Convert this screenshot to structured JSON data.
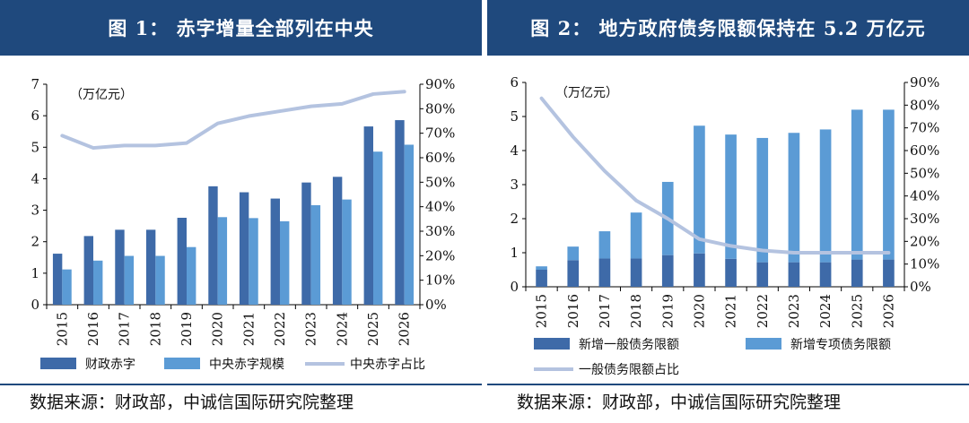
{
  "panels": {
    "left": {
      "title": "图 1： 赤字增量全部列在中央",
      "source": "数据来源：财政部，中诚信国际研究院整理"
    },
    "right": {
      "title": "图 2： 地方政府债务限额保持在 5.2 万亿元",
      "source": "数据来源：财政部，中诚信国际研究院整理"
    }
  },
  "colors": {
    "title_bg": "#1f497d",
    "bar_dark": "#3e6aa8",
    "bar_light": "#5b9bd5",
    "line": "#b4c3e0"
  },
  "chart_data": [
    {
      "id": "left",
      "type": "bar",
      "title": "图 1： 赤字增量全部列在中央",
      "unit_label": "（万亿元）",
      "categories": [
        "2015",
        "2016",
        "2017",
        "2018",
        "2019",
        "2020",
        "2021",
        "2022",
        "2023",
        "2024",
        "2025",
        "2026"
      ],
      "y_left": {
        "min": 0,
        "max": 7,
        "ticks": [
          "0",
          "1",
          "2",
          "3",
          "4",
          "5",
          "6",
          "7"
        ]
      },
      "y_right": {
        "min": 0,
        "max": 0.9,
        "ticks": [
          "0%",
          "10%",
          "20%",
          "30%",
          "40%",
          "50%",
          "60%",
          "70%",
          "80%",
          "90%"
        ]
      },
      "series": [
        {
          "name": "财政赤字",
          "kind": "bar",
          "axis": "left",
          "values": [
            1.62,
            2.18,
            2.38,
            2.38,
            2.76,
            3.76,
            3.57,
            3.37,
            3.88,
            4.06,
            5.66,
            5.86
          ]
        },
        {
          "name": "中央赤字规模",
          "kind": "bar",
          "axis": "left",
          "values": [
            1.12,
            1.4,
            1.55,
            1.55,
            1.83,
            2.78,
            2.75,
            2.65,
            3.16,
            3.34,
            4.86,
            5.08
          ]
        },
        {
          "name": "中央赤字占比",
          "kind": "line",
          "axis": "right",
          "values": [
            0.69,
            0.64,
            0.65,
            0.65,
            0.66,
            0.74,
            0.77,
            0.79,
            0.81,
            0.82,
            0.86,
            0.87
          ]
        }
      ],
      "legend_position": "bottom"
    },
    {
      "id": "right",
      "type": "bar",
      "title": "图 2： 地方政府债务限额保持在 5.2 万亿元",
      "unit_label": "（万亿元）",
      "categories": [
        "2015",
        "2016",
        "2017",
        "2018",
        "2019",
        "2020",
        "2021",
        "2022",
        "2023",
        "2024",
        "2025",
        "2026"
      ],
      "y_left": {
        "min": 0,
        "max": 6,
        "ticks": [
          "0",
          "1",
          "2",
          "3",
          "4",
          "5",
          "6"
        ]
      },
      "y_right": {
        "min": 0,
        "max": 0.9,
        "ticks": [
          "0%",
          "10%",
          "20%",
          "30%",
          "40%",
          "50%",
          "60%",
          "70%",
          "80%",
          "90%"
        ]
      },
      "stacked": true,
      "series": [
        {
          "name": "新增一般债务限额",
          "kind": "bar",
          "axis": "left",
          "values": [
            0.5,
            0.78,
            0.83,
            0.83,
            0.93,
            0.98,
            0.82,
            0.72,
            0.72,
            0.72,
            0.8,
            0.8
          ]
        },
        {
          "name": "新增专项债务限额",
          "kind": "bar",
          "axis": "left",
          "values": [
            0.1,
            0.4,
            0.8,
            1.35,
            2.15,
            3.75,
            3.65,
            3.65,
            3.8,
            3.9,
            4.4,
            4.4
          ]
        },
        {
          "name": "一般债务限额占比",
          "kind": "line",
          "axis": "right",
          "values": [
            0.83,
            0.66,
            0.51,
            0.38,
            0.3,
            0.21,
            0.18,
            0.16,
            0.15,
            0.15,
            0.15,
            0.15
          ]
        }
      ],
      "legend_position": "bottom"
    }
  ]
}
